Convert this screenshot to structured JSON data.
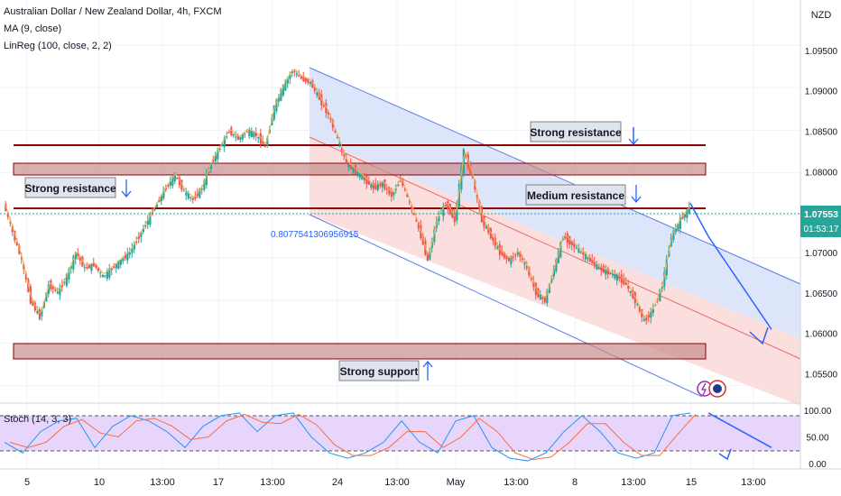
{
  "header": {
    "title": "Australian Dollar / New Zealand Dollar, 4h, FXCM",
    "indicators": [
      "MA (9, close)",
      "LinReg (100, close, 2, 2)"
    ]
  },
  "price_axis": {
    "currency": "NZD",
    "labels": [
      "1.09500",
      "1.09000",
      "1.08500",
      "1.08000",
      "1.07500",
      "1.07000",
      "1.06500",
      "1.06000",
      "1.05500"
    ],
    "current_price": "1.07553",
    "countdown": "01:53:17"
  },
  "time_axis": {
    "labels": [
      "5",
      "10",
      "13:00",
      "17",
      "13:00",
      "24",
      "13:00",
      "May",
      "13:00",
      "8",
      "13:00",
      "15",
      "13:00"
    ]
  },
  "stoch": {
    "label": "Stoch (14, 3, 3)",
    "labels": [
      "100.00",
      "50.00",
      "0.00"
    ]
  },
  "colors": {
    "up": "#26a69a",
    "down": "#ef5350",
    "resistance": "#8b0000",
    "zone_fill": "#c98b8b",
    "channel_upper_fill": "#dde5fb",
    "channel_lower_fill": "#fbdfdf",
    "channel_line": "#2962ff",
    "ma": "#f0b24a",
    "stoch_k": "#2196f3",
    "stoch_d": "#ff6b3d",
    "stoch_band": "#e7d5fb"
  },
  "annotations": {
    "strong_resistance_top": "Strong resistance",
    "strong_resistance_left": "Strong resistance",
    "medium_resistance": "Medium resistance",
    "strong_support": "Strong support",
    "linreg_value": "0.8077541306956915"
  },
  "chart_data": {
    "type": "candlestick",
    "symbol": "AUDNZD",
    "timeframe": "4h",
    "y_range": [
      1.0525,
      1.099
    ],
    "levels": {
      "strong_resistance_line": 1.0835,
      "resistance_zone": [
        1.0804,
        1.0815
      ],
      "medium_resistance_line": 1.0761,
      "support_zone": [
        1.0589,
        1.0604
      ]
    },
    "close_path": [
      [
        0,
        1.076
      ],
      [
        1,
        1.0725
      ],
      [
        2,
        1.069
      ],
      [
        3,
        1.064
      ],
      [
        4,
        1.062
      ],
      [
        5,
        1.066
      ],
      [
        6,
        1.065
      ],
      [
        7,
        1.067
      ],
      [
        8,
        1.07
      ],
      [
        9,
        1.068
      ],
      [
        10,
        1.0685
      ],
      [
        11,
        1.067
      ],
      [
        12,
        1.068
      ],
      [
        13,
        1.069
      ],
      [
        14,
        1.07
      ],
      [
        15,
        1.072
      ],
      [
        16,
        1.074
      ],
      [
        17,
        1.076
      ],
      [
        18,
        1.078
      ],
      [
        19,
        1.0795
      ],
      [
        20,
        1.0775
      ],
      [
        21,
        1.0765
      ],
      [
        22,
        1.078
      ],
      [
        23,
        1.081
      ],
      [
        24,
        1.083
      ],
      [
        25,
        1.085
      ],
      [
        26,
        1.084
      ],
      [
        27,
        1.085
      ],
      [
        28,
        1.0845
      ],
      [
        29,
        1.083
      ],
      [
        30,
        1.088
      ],
      [
        31,
        1.0905
      ],
      [
        32,
        1.0925
      ],
      [
        33,
        1.0915
      ],
      [
        34,
        1.091
      ],
      [
        35,
        1.089
      ],
      [
        36,
        1.087
      ],
      [
        37,
        1.084
      ],
      [
        38,
        1.081
      ],
      [
        39,
        1.08
      ],
      [
        40,
        1.079
      ],
      [
        41,
        1.078
      ],
      [
        42,
        1.0785
      ],
      [
        43,
        1.077
      ],
      [
        44,
        1.079
      ],
      [
        45,
        1.076
      ],
      [
        46,
        1.073
      ],
      [
        47,
        1.069
      ],
      [
        48,
        1.074
      ],
      [
        49,
        1.076
      ],
      [
        50,
        1.074
      ],
      [
        51,
        1.0825
      ],
      [
        52,
        1.079
      ],
      [
        53,
        1.074
      ],
      [
        54,
        1.072
      ],
      [
        55,
        1.07
      ],
      [
        56,
        1.069
      ],
      [
        57,
        1.07
      ],
      [
        58,
        1.068
      ],
      [
        59,
        1.065
      ],
      [
        60,
        1.064
      ],
      [
        61,
        1.068
      ],
      [
        62,
        1.072
      ],
      [
        63,
        1.071
      ],
      [
        64,
        1.07
      ],
      [
        65,
        1.069
      ],
      [
        66,
        1.068
      ],
      [
        67,
        1.0675
      ],
      [
        68,
        1.067
      ],
      [
        69,
        1.066
      ],
      [
        70,
        1.064
      ],
      [
        71,
        1.0615
      ],
      [
        72,
        1.063
      ],
      [
        73,
        1.066
      ],
      [
        74,
        1.072
      ],
      [
        75,
        1.074
      ],
      [
        76,
        1.0755
      ]
    ],
    "projection": [
      [
        76,
        1.0761
      ],
      [
        78,
        1.072
      ],
      [
        85,
        1.0605
      ]
    ],
    "stoch_projection": [
      [
        78,
        95
      ],
      [
        85,
        30
      ]
    ],
    "stoch_k": [
      [
        0,
        40
      ],
      [
        2,
        20
      ],
      [
        4,
        60
      ],
      [
        6,
        80
      ],
      [
        8,
        85
      ],
      [
        10,
        30
      ],
      [
        12,
        70
      ],
      [
        14,
        90
      ],
      [
        16,
        80
      ],
      [
        18,
        60
      ],
      [
        20,
        30
      ],
      [
        22,
        70
      ],
      [
        24,
        90
      ],
      [
        26,
        95
      ],
      [
        28,
        60
      ],
      [
        30,
        90
      ],
      [
        32,
        95
      ],
      [
        34,
        50
      ],
      [
        36,
        20
      ],
      [
        38,
        10
      ],
      [
        40,
        20
      ],
      [
        42,
        40
      ],
      [
        44,
        80
      ],
      [
        46,
        40
      ],
      [
        48,
        20
      ],
      [
        50,
        80
      ],
      [
        52,
        90
      ],
      [
        54,
        30
      ],
      [
        56,
        10
      ],
      [
        58,
        5
      ],
      [
        60,
        20
      ],
      [
        62,
        60
      ],
      [
        64,
        90
      ],
      [
        66,
        60
      ],
      [
        68,
        20
      ],
      [
        70,
        10
      ],
      [
        72,
        20
      ],
      [
        74,
        90
      ],
      [
        76,
        95
      ]
    ]
  }
}
